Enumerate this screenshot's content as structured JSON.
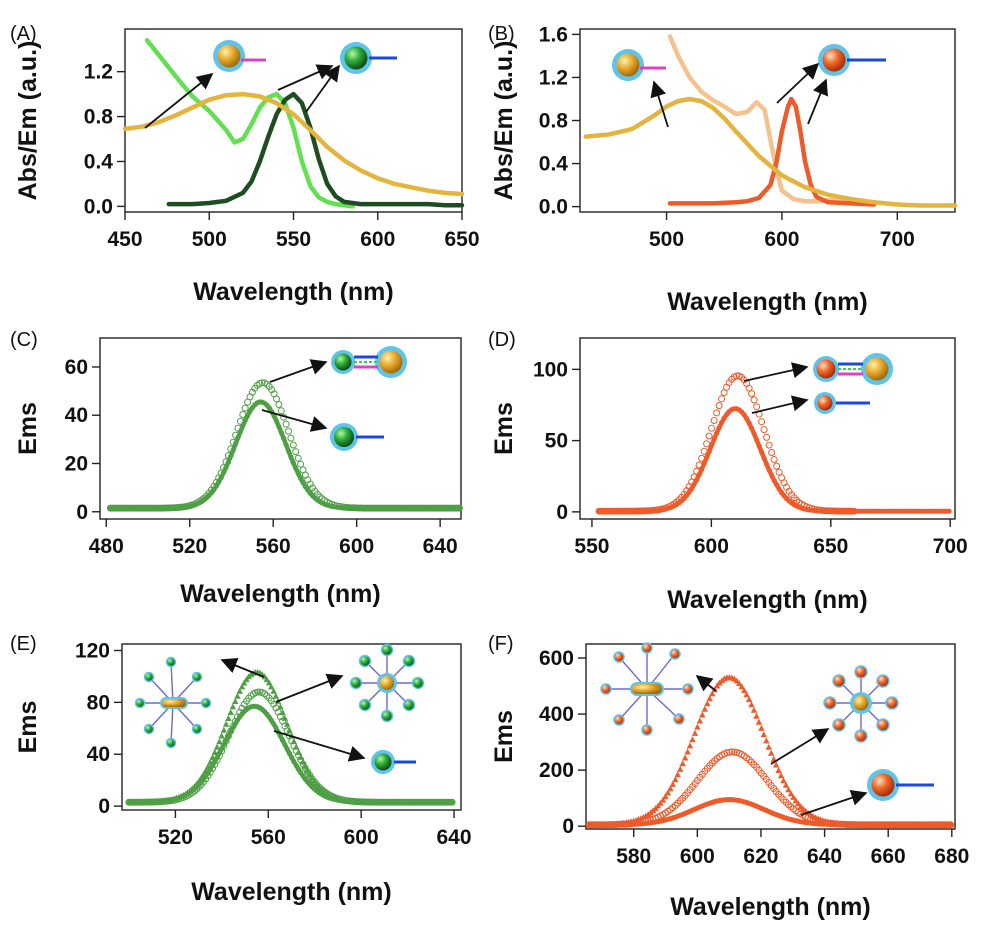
{
  "colors": {
    "green_light": "#62e052",
    "green_dark": "#1f4d22",
    "green_mid": "#4e9f45",
    "gold": "#e3b43e",
    "peach": "#f3c28d",
    "orange": "#ef5a2a",
    "cyan": "#5ec4ec",
    "magenta": "#e040c8",
    "blue": "#1b48e0"
  },
  "chart_data": [
    {
      "panel": "(A)",
      "type": "line",
      "xlabel": "Wavelength (nm)",
      "ylabel": "Abs/Em (a.u.)",
      "xlim": [
        450,
        650
      ],
      "ylim": [
        -0.05,
        1.58
      ],
      "xticks": [
        "450",
        "500",
        "550",
        "600",
        "650"
      ],
      "yticks": [
        "0.0",
        "0.4",
        "0.8",
        "1.2"
      ],
      "series": [
        {
          "name": "green QD absorption",
          "color": "#62e052",
          "x": [
            463,
            470,
            480,
            490,
            500,
            510,
            515,
            520,
            525,
            530,
            535,
            540,
            545,
            550,
            555,
            560,
            565,
            570,
            575,
            580,
            585
          ],
          "y": [
            1.48,
            1.35,
            1.16,
            0.98,
            0.85,
            0.68,
            0.57,
            0.6,
            0.73,
            0.88,
            0.97,
            1.0,
            0.92,
            0.7,
            0.4,
            0.18,
            0.08,
            0.04,
            0.02,
            0.01,
            0.0
          ]
        },
        {
          "name": "green QD emission",
          "color": "#1f4d22",
          "x": [
            476,
            490,
            500,
            510,
            520,
            525,
            530,
            535,
            540,
            545,
            550,
            555,
            560,
            565,
            570,
            575,
            580,
            590,
            600,
            610,
            620,
            630,
            640,
            650
          ],
          "y": [
            0.02,
            0.02,
            0.03,
            0.05,
            0.12,
            0.22,
            0.4,
            0.62,
            0.82,
            0.95,
            1.0,
            0.92,
            0.7,
            0.42,
            0.2,
            0.09,
            0.04,
            0.02,
            0.02,
            0.02,
            0.02,
            0.02,
            0.01,
            0.01
          ]
        },
        {
          "name": "gold NP absorption",
          "color": "#e3b43e",
          "x": [
            450,
            460,
            470,
            480,
            490,
            500,
            510,
            520,
            530,
            540,
            550,
            560,
            570,
            580,
            590,
            600,
            610,
            620,
            630,
            640,
            650
          ],
          "y": [
            0.69,
            0.71,
            0.75,
            0.81,
            0.88,
            0.95,
            0.99,
            1.0,
            0.98,
            0.92,
            0.82,
            0.68,
            0.53,
            0.41,
            0.32,
            0.25,
            0.2,
            0.17,
            0.14,
            0.12,
            0.11
          ]
        }
      ]
    },
    {
      "panel": "(B)",
      "type": "line",
      "xlabel": "Wavelength (nm)",
      "ylabel": "Abs/Em (a.u.)",
      "xlim": [
        425,
        750
      ],
      "ylim": [
        -0.05,
        1.65
      ],
      "xticks": [
        "500",
        "600",
        "700"
      ],
      "yticks": [
        "0.0",
        "0.4",
        "0.8",
        "1.2",
        "1.6"
      ],
      "series": [
        {
          "name": "red QD absorption",
          "color": "#f3c28d",
          "x": [
            503,
            510,
            520,
            530,
            540,
            550,
            560,
            570,
            578,
            585,
            590,
            595,
            600,
            610,
            620,
            630,
            640,
            650,
            660,
            670,
            680
          ],
          "y": [
            1.58,
            1.4,
            1.2,
            1.07,
            0.99,
            0.93,
            0.86,
            0.88,
            0.97,
            0.9,
            0.62,
            0.35,
            0.15,
            0.07,
            0.05,
            0.05,
            0.06,
            0.06,
            0.06,
            0.05,
            0.04
          ]
        },
        {
          "name": "red QD emission",
          "color": "#ef5a2a",
          "x": [
            503,
            520,
            540,
            560,
            570,
            580,
            590,
            595,
            600,
            605,
            608,
            612,
            616,
            620,
            625,
            630,
            640,
            660,
            680
          ],
          "y": [
            0.03,
            0.03,
            0.03,
            0.04,
            0.05,
            0.08,
            0.2,
            0.4,
            0.7,
            0.92,
            1.0,
            0.93,
            0.7,
            0.42,
            0.2,
            0.09,
            0.04,
            0.03,
            0.02
          ]
        },
        {
          "name": "gold NP absorption",
          "color": "#e3b43e",
          "x": [
            430,
            450,
            470,
            490,
            500,
            510,
            520,
            530,
            540,
            550,
            560,
            580,
            600,
            620,
            640,
            660,
            680,
            700,
            720,
            750
          ],
          "y": [
            0.65,
            0.67,
            0.72,
            0.85,
            0.93,
            0.98,
            1.0,
            0.98,
            0.92,
            0.82,
            0.7,
            0.47,
            0.29,
            0.18,
            0.11,
            0.07,
            0.04,
            0.02,
            0.01,
            0.01
          ]
        }
      ]
    },
    {
      "panel": "(C)",
      "type": "scatter",
      "xlabel": "Wavelength (nm)",
      "ylabel": "Ems",
      "xlim": [
        477,
        650
      ],
      "ylim": [
        -3,
        72
      ],
      "xticks": [
        "480",
        "520",
        "560",
        "600",
        "640"
      ],
      "yticks": [
        "0",
        "20",
        "40",
        "60"
      ],
      "series": [
        {
          "name": "QD-DNA-AuNP conjugate",
          "marker": "open-circle",
          "color": "#4e9f45",
          "center": 555,
          "width": 12.5,
          "peak": 52,
          "base": 1.5,
          "x_range": [
            482,
            650
          ]
        },
        {
          "name": "QD-DNA",
          "marker": "filled-circle",
          "color": "#4e9f45",
          "center": 554,
          "width": 12,
          "peak": 44,
          "base": 1.5,
          "x_range": [
            482,
            650
          ]
        }
      ]
    },
    {
      "panel": "(D)",
      "type": "scatter",
      "xlabel": "Wavelength (nm)",
      "ylabel": "Ems",
      "xlim": [
        545,
        702
      ],
      "ylim": [
        -5,
        122
      ],
      "xticks": [
        "550",
        "600",
        "650",
        "700"
      ],
      "yticks": [
        "0",
        "50",
        "100"
      ],
      "series": [
        {
          "name": "QD-DNA-AuNP conjugate",
          "marker": "open-circle",
          "color": "#ef5a2a",
          "center": 611,
          "width": 11,
          "peak": 95,
          "base": 0.5,
          "x_range": [
            553,
            660
          ]
        },
        {
          "name": "QD-DNA",
          "marker": "filled-circle",
          "color": "#ef5a2a",
          "center": 610,
          "width": 10.5,
          "peak": 72,
          "base": 0.5,
          "x_range": [
            553,
            700
          ]
        }
      ]
    },
    {
      "panel": "(E)",
      "type": "scatter",
      "xlabel": "Wavelength (nm)",
      "ylabel": "Ems",
      "xlim": [
        497,
        643
      ],
      "ylim": [
        -3,
        125
      ],
      "xticks": [
        "520",
        "560",
        "600",
        "640"
      ],
      "yticks": [
        "0",
        "40",
        "80",
        "120"
      ],
      "series": [
        {
          "name": "nanorod satellite assembly",
          "marker": "triangle",
          "color": "#4e9f45",
          "center": 555,
          "width": 13,
          "peak": 100,
          "base": 3,
          "x_range": [
            500,
            640
          ]
        },
        {
          "name": "nanosphere satellite assembly",
          "marker": "open-circle",
          "color": "#4e9f45",
          "center": 556,
          "width": 13,
          "peak": 85,
          "base": 3,
          "x_range": [
            500,
            640
          ]
        },
        {
          "name": "QD-DNA",
          "marker": "filled-circle",
          "color": "#4e9f45",
          "center": 554,
          "width": 13,
          "peak": 74,
          "base": 3,
          "x_range": [
            500,
            640
          ]
        }
      ]
    },
    {
      "panel": "(F)",
      "type": "scatter",
      "xlabel": "Wavelength (nm)",
      "ylabel": "Ems",
      "xlim": [
        565,
        681
      ],
      "ylim": [
        -10,
        650
      ],
      "xticks": [
        "580",
        "600",
        "620",
        "640",
        "660",
        "680"
      ],
      "yticks": [
        "0",
        "200",
        "400",
        "600"
      ],
      "series": [
        {
          "name": "nanorod satellite assembly",
          "marker": "triangle",
          "color": "#ef5a2a",
          "center": 610,
          "width": 11,
          "peak": 525,
          "base": 5,
          "x_range": [
            566,
            680
          ]
        },
        {
          "name": "nanosphere satellite assembly",
          "marker": "open-circle",
          "color": "#ef5a2a",
          "center": 611,
          "width": 11,
          "peak": 260,
          "base": 5,
          "x_range": [
            566,
            680
          ]
        },
        {
          "name": "QD-DNA",
          "marker": "filled-circle",
          "color": "#ef5a2a",
          "center": 610,
          "width": 11,
          "peak": 90,
          "base": 5,
          "x_range": [
            566,
            680
          ]
        }
      ]
    }
  ]
}
